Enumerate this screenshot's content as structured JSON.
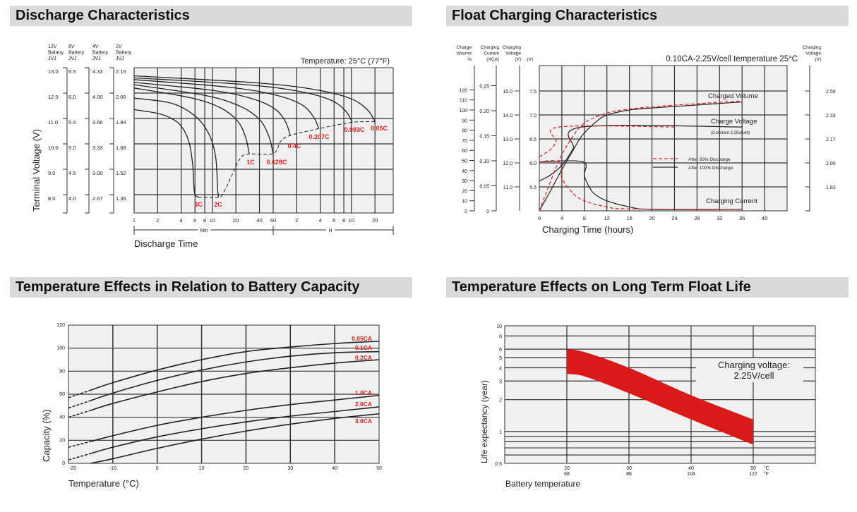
{
  "sections": {
    "discharge": "Discharge Characteristics",
    "float": "Float Charging Characteristics",
    "temp_capacity": "Temperature Effects in Relation to Battery Capacity",
    "float_life": "Temperature Effects on Long Term Float Life"
  },
  "colors": {
    "header_bg": "#dadada",
    "plot_bg": "#f0f0f0",
    "grid": "#333333",
    "accent_red": "#e02020",
    "band_red": "#d91a1a"
  },
  "chart_data": [
    {
      "type": "line",
      "annotation": "Temperature: 25°C (77°F)",
      "xlabel": "Discharge Time",
      "ylabel": "Terminal Voltage (V)",
      "x_scale": "log",
      "x_unit": "minutes",
      "x_ranges": [
        {
          "label": "Min"
        },
        {
          "label": "H"
        }
      ],
      "x_ticks_min": [
        "1",
        "2",
        "4",
        "6",
        "8",
        "10",
        "20",
        "40",
        "60"
      ],
      "x_ticks_h": [
        "2",
        "4",
        "6",
        "8",
        "10",
        "20"
      ],
      "ylim": [
        7.3,
        13.0
      ],
      "grid": true,
      "y_axes": [
        {
          "header": [
            "12V",
            "Battery",
            "JVJ"
          ],
          "ticks": [
            "13.0",
            "12.0",
            "11.0",
            "10.0",
            "9.0",
            "8.0"
          ]
        },
        {
          "header": [
            "6V",
            "Battery",
            "JVJ"
          ],
          "ticks": [
            "6.5",
            "6.0",
            "5.5",
            "5.0",
            "4.5",
            "4.0"
          ]
        },
        {
          "header": [
            "4V",
            "Battery",
            "JVJ"
          ],
          "ticks": [
            "4.33",
            "4.00",
            "3.66",
            "3.33",
            "3.00",
            "2.67"
          ]
        },
        {
          "header": [
            "2V",
            "Battery",
            "JVJ"
          ],
          "ticks": [
            "2.16",
            "2.00",
            "1.84",
            "1.68",
            "1.52",
            "1.36"
          ]
        }
      ],
      "series": [
        {
          "name": "3C",
          "points": [
            [
              1,
              11.35
            ],
            [
              2,
              11.2
            ],
            [
              3,
              11.0
            ],
            [
              4,
              10.7
            ],
            [
              5,
              10.1
            ],
            [
              5.6,
              9.2
            ],
            [
              5.9,
              8.1
            ],
            [
              6.6,
              7.9
            ]
          ]
        },
        {
          "name": "2C",
          "points": [
            [
              1,
              11.8
            ],
            [
              3,
              11.6
            ],
            [
              6,
              11.1
            ],
            [
              9,
              10.4
            ],
            [
              11,
              9.5
            ],
            [
              11.7,
              8.2
            ],
            [
              12,
              7.9
            ]
          ]
        },
        {
          "name": "1C",
          "points": [
            [
              1,
              12.2
            ],
            [
              5.4,
              11.81
            ],
            [
              12.7,
              11.42
            ],
            [
              21,
              10.9
            ],
            [
              26.7,
              10.25
            ],
            [
              29.6,
              9.6
            ]
          ]
        },
        {
          "name": "0.628C",
          "points": [
            [
              1,
              12.33
            ],
            [
              7.7,
              11.92
            ],
            [
              21.6,
              11.51
            ],
            [
              39.8,
              10.97
            ],
            [
              53,
              10.28
            ],
            [
              60,
              9.6
            ]
          ]
        },
        {
          "name": "0.4C",
          "points": [
            [
              1,
              12.42
            ],
            [
              9.9,
              12.11
            ],
            [
              31.3,
              11.79
            ],
            [
              62.9,
              11.38
            ],
            [
              86.8,
              10.85
            ],
            [
              99,
              10.33
            ]
          ]
        },
        {
          "name": "0.207C",
          "points": [
            [
              1,
              12.53
            ],
            [
              15.2,
              12.24
            ],
            [
              59,
              11.95
            ],
            [
              134,
              11.57
            ],
            [
              195,
              11.08
            ],
            [
              230,
              10.6
            ]
          ]
        },
        {
          "name": "0.093C",
          "points": [
            [
              1,
              12.6
            ],
            [
              24.8,
              12.34
            ],
            [
              123,
              12.08
            ],
            [
              323,
              11.73
            ],
            [
              507,
              11.29
            ],
            [
              615,
              10.85
            ]
          ]
        },
        {
          "name": "0.05C",
          "points": [
            [
              1,
              12.68
            ],
            [
              34.6,
              12.41
            ],
            [
              204,
              12.14
            ],
            [
              590,
              11.78
            ],
            [
              975,
              11.32
            ],
            [
              1200,
              10.87
            ]
          ]
        }
      ],
      "end_voltage_curve": [
        [
          6.6,
          7.9
        ],
        [
          12,
          7.9
        ],
        [
          14,
          8.1
        ],
        [
          18,
          8.8
        ],
        [
          23,
          9.45
        ],
        [
          29.6,
          9.6
        ],
        [
          60,
          9.62
        ],
        [
          75,
          10.1
        ],
        [
          99,
          10.33
        ],
        [
          230,
          10.6
        ],
        [
          615,
          10.85
        ],
        [
          1200,
          10.87
        ]
      ]
    },
    {
      "type": "line",
      "annotation": "0.10CA-2.25V/cell  temperature 25°C",
      "xlabel": "Charging Time (hours)",
      "x_ticks": [
        "0",
        "4",
        "8",
        "12",
        "16",
        "20",
        "24",
        "28",
        "32",
        "36",
        "40"
      ],
      "xlim": [
        0,
        44
      ],
      "grid": true,
      "y_axes": [
        {
          "header": [
            "Charge",
            "Volume",
            "%"
          ],
          "ticks": [
            "120",
            "110",
            "100",
            "90",
            "80",
            "70",
            "60",
            "50",
            "40",
            "30",
            "20",
            "10",
            "0"
          ]
        },
        {
          "header": [
            "Charging",
            "Current",
            "(XCA)"
          ],
          "ticks": [
            "0.25",
            "0.20",
            "0.15",
            "0.10",
            "0.05",
            "0"
          ]
        },
        {
          "header": [
            "Charging",
            "Voltage",
            "(V)"
          ],
          "ticks": [
            "15.0",
            "14.0",
            "13.0",
            "12.0",
            "11.0"
          ]
        },
        {
          "header": [
            "(V)"
          ],
          "ticks": [
            "7.5",
            "7.0",
            "6.5",
            "6.0",
            "5.5"
          ]
        },
        {
          "header": [
            "Charging",
            "Voltage",
            "(V)"
          ],
          "ticks": [
            "2.50",
            "2.33",
            "2.17",
            "2.00",
            "1.83"
          ]
        }
      ],
      "labels": {
        "charged_volume": "Charged Volume",
        "charge_voltage": "Charge Voltage",
        "charge_voltage_note": "(Constant 2.25v/cell)",
        "charging_current": "Charging Current"
      },
      "legend": [
        {
          "name": "After  50% Discharge",
          "style": "dashed",
          "color": "#e02020"
        },
        {
          "name": "After 100% Discharge",
          "style": "solid",
          "color": "#222222"
        }
      ],
      "series": [
        {
          "quantity": "charge_voltage_V",
          "case": "After 100% Discharge",
          "points": [
            [
              0,
              5.62
            ],
            [
              2,
              5.75
            ],
            [
              4,
              5.95
            ],
            [
              6,
              6.3
            ],
            [
              7.7,
              6.75
            ],
            [
              36,
              6.75
            ]
          ]
        },
        {
          "quantity": "charge_voltage_V",
          "case": "After  50% Discharge",
          "points": [
            [
              0,
              6.13
            ],
            [
              2,
              6.28
            ],
            [
              3,
              6.45
            ],
            [
              3.6,
              6.75
            ],
            [
              24,
              6.75
            ]
          ]
        },
        {
          "quantity": "charged_volume_pct",
          "case": "After 100% Discharge",
          "points": [
            [
              0,
              0
            ],
            [
              2,
              20
            ],
            [
              4,
              41
            ],
            [
              6,
              60
            ],
            [
              7.5,
              74
            ],
            [
              10,
              88
            ],
            [
              12,
              95
            ],
            [
              16,
              100
            ],
            [
              20,
              102
            ],
            [
              28,
              105
            ],
            [
              36,
              108
            ]
          ]
        },
        {
          "quantity": "charged_volume_pct",
          "case": "After  50% Discharge",
          "points": [
            [
              0,
              0
            ],
            [
              1.5,
              22
            ],
            [
              3.5,
              50
            ],
            [
              5.5,
              70
            ],
            [
              8,
              87
            ],
            [
              12,
              97
            ],
            [
              16,
              101
            ],
            [
              22,
              104
            ],
            [
              30,
              107
            ],
            [
              36,
              109
            ]
          ]
        },
        {
          "quantity": "charging_current_CA",
          "case": "After 100% Discharge",
          "points": [
            [
              0,
              0.098
            ],
            [
              7.7,
              0.098
            ],
            [
              8,
              0.07
            ],
            [
              9,
              0.045
            ],
            [
              10,
              0.032
            ],
            [
              12,
              0.02
            ],
            [
              16,
              0.008
            ],
            [
              20,
              0.003
            ],
            [
              36,
              0.003
            ]
          ]
        },
        {
          "quantity": "charging_current_CA",
          "case": "After  50% Discharge",
          "points": [
            [
              0,
              0.098
            ],
            [
              3.5,
              0.098
            ],
            [
              4,
              0.065
            ],
            [
              6,
              0.035
            ],
            [
              8,
              0.02
            ],
            [
              12,
              0.008
            ],
            [
              16,
              0.004
            ],
            [
              36,
              0.003
            ]
          ]
        }
      ]
    },
    {
      "type": "line",
      "xlabel": "Temperature (°C)",
      "ylabel": "Capacity (%)",
      "x_ticks": [
        "-20",
        "-10",
        "0",
        "10",
        "20",
        "30",
        "40",
        "50"
      ],
      "y_ticks": [
        "120",
        "100",
        "80",
        "60",
        "40",
        "20",
        "0"
      ],
      "xlim": [
        -20,
        50
      ],
      "ylim": [
        0,
        120
      ],
      "grid": true,
      "x": [
        -20,
        -10,
        0,
        10,
        20,
        30,
        40,
        50
      ],
      "series": [
        {
          "name": "0.05CA",
          "values": [
            57,
            70,
            81,
            90,
            97,
            101,
            104,
            106
          ]
        },
        {
          "name": "0.1CA",
          "values": [
            48,
            61,
            72,
            81,
            88,
            93,
            96,
            97
          ]
        },
        {
          "name": "0.2CA",
          "values": [
            40,
            52,
            62,
            71,
            78,
            83,
            87,
            90
          ]
        },
        {
          "name": "1.0CA",
          "values": [
            14,
            24,
            33,
            40,
            46,
            51,
            55,
            59
          ]
        },
        {
          "name": "2.0CA",
          "values": [
            3,
            14,
            23,
            30,
            36,
            41,
            45,
            49
          ]
        },
        {
          "name": "3.0CA",
          "values": [
            null,
            4,
            13,
            21,
            28,
            34,
            39,
            43
          ],
          "starts_at": [
            -15,
            0
          ]
        }
      ],
      "dashed_below": -15
    },
    {
      "type": "area",
      "xlabel": "Battery temperature",
      "ylabel": "Life expectancy (year)",
      "annotation": [
        "Charging voltage:",
        "2.25V/cell"
      ],
      "y_scale": "log",
      "ylim": [
        0.5,
        10
      ],
      "xlim": [
        10,
        60
      ],
      "grid": true,
      "y_ticks": [
        "10",
        "8",
        "6",
        "5",
        "4",
        "3",
        "2",
        "1",
        "0.5"
      ],
      "x_ticks_c": [
        "20",
        "30",
        "40",
        "50"
      ],
      "x_ticks_f": [
        "68",
        "86",
        "104",
        "122"
      ],
      "unit_c": "°C",
      "unit_f": "°F",
      "band": {
        "x": [
          20,
          23,
          30,
          40,
          50
        ],
        "upper": [
          6.0,
          5.6,
          4.0,
          2.2,
          1.3
        ],
        "lower": [
          3.5,
          3.3,
          2.3,
          1.3,
          0.75
        ]
      }
    }
  ]
}
